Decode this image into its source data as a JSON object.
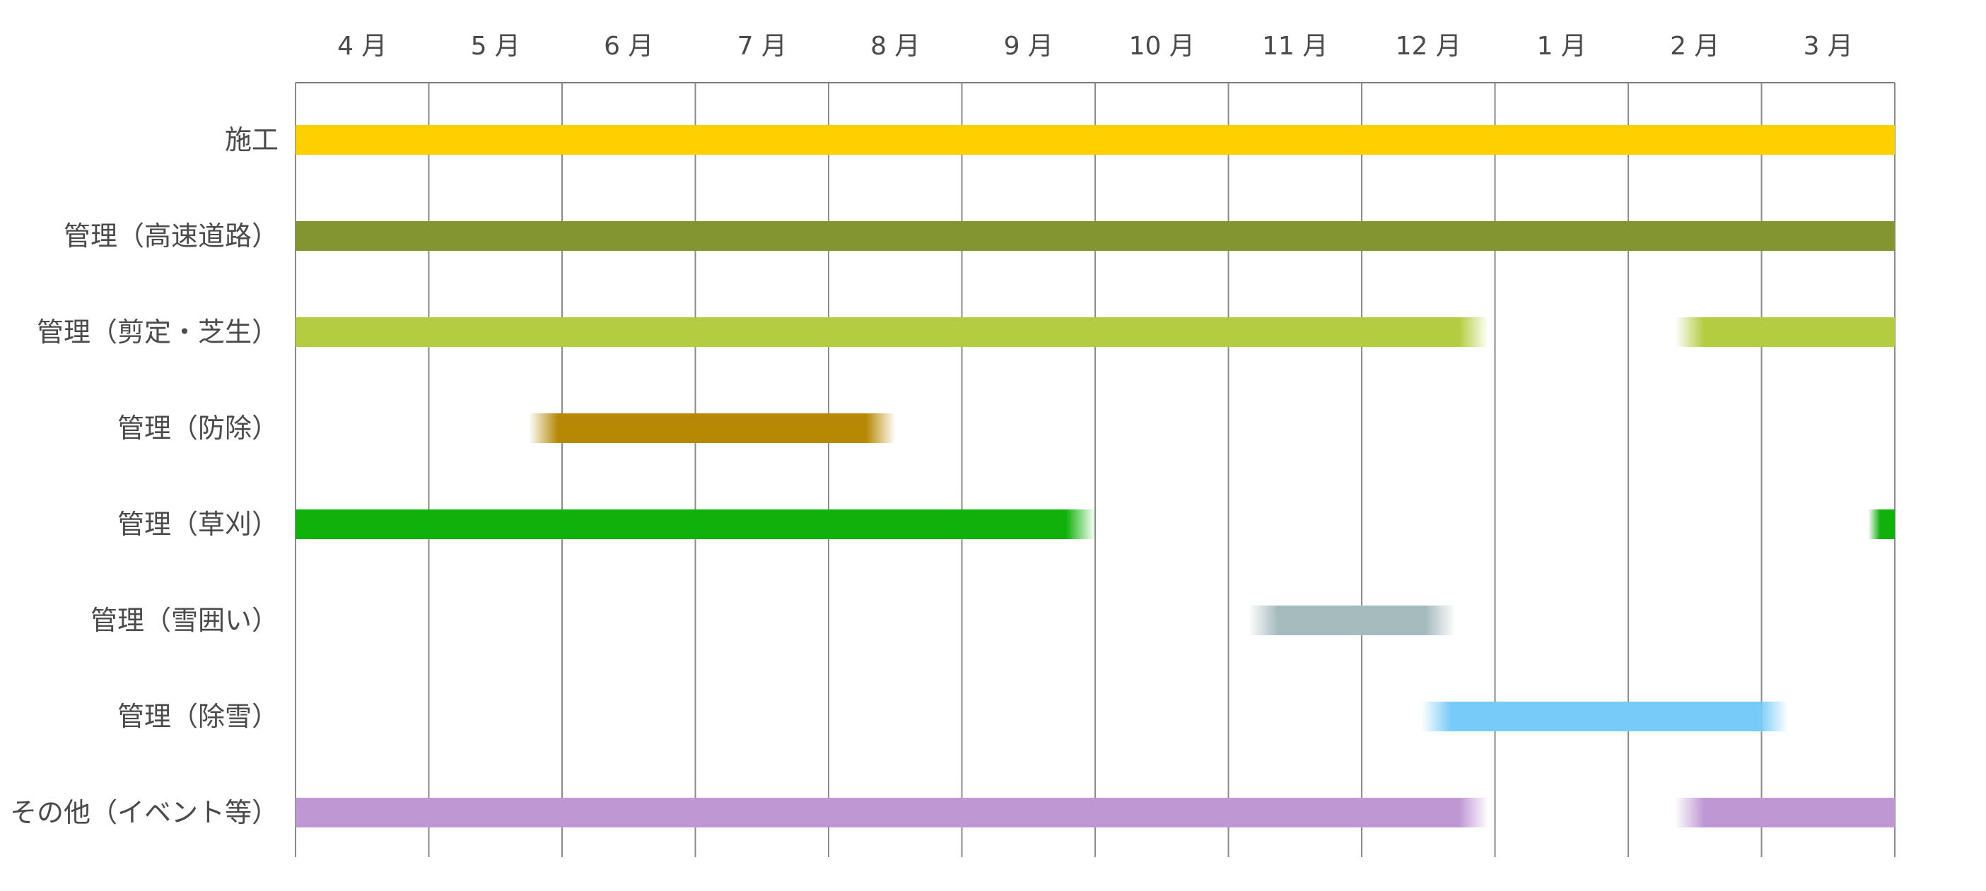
{
  "chart_data": {
    "type": "gantt",
    "title": "",
    "months": [
      "4 月",
      "5 月",
      "6 月",
      "7 月",
      "8 月",
      "9 月",
      "10 月",
      "11 月",
      "12 月",
      "1 月",
      "2 月",
      "3 月"
    ],
    "x_unit": "month index (0 = start of 4 月, 12 = end of 3 月)",
    "grid": "vertical lines at month boundaries",
    "series": [
      {
        "name": "施工",
        "color": "#FFD000",
        "segments": [
          {
            "start": 0.0,
            "end": 12.0,
            "fade_start": false,
            "fade_end": false
          }
        ]
      },
      {
        "name": "管理（高速道路）",
        "color": "#839531",
        "segments": [
          {
            "start": 0.0,
            "end": 12.0,
            "fade_start": false,
            "fade_end": false
          }
        ]
      },
      {
        "name": "管理（剪定・芝生）",
        "color": "#B3CC40",
        "segments": [
          {
            "start": 0.0,
            "end": 8.95,
            "fade_start": false,
            "fade_end": true
          },
          {
            "start": 10.35,
            "end": 12.0,
            "fade_start": true,
            "fade_end": false
          }
        ]
      },
      {
        "name": "管理（防除）",
        "color": "#B68803",
        "segments": [
          {
            "start": 1.75,
            "end": 4.5,
            "fade_start": true,
            "fade_end": true
          }
        ]
      },
      {
        "name": "管理（草刈）",
        "color": "#10B10A",
        "segments": [
          {
            "start": 0.0,
            "end": 6.0,
            "fade_start": false,
            "fade_end": true
          },
          {
            "start": 11.8,
            "end": 12.0,
            "fade_start": true,
            "fade_end": false
          }
        ]
      },
      {
        "name": "管理（雪囲い）",
        "color": "#A6BBBE",
        "segments": [
          {
            "start": 7.15,
            "end": 8.7,
            "fade_start": true,
            "fade_end": true
          }
        ]
      },
      {
        "name": "管理（除雪）",
        "color": "#76CBF8",
        "segments": [
          {
            "start": 8.45,
            "end": 11.2,
            "fade_start": true,
            "fade_end": true
          }
        ]
      },
      {
        "name": "その他（イベント等）",
        "color": "#BF97D3",
        "segments": [
          {
            "start": 0.0,
            "end": 8.95,
            "fade_start": false,
            "fade_end": true
          },
          {
            "start": 10.35,
            "end": 12.0,
            "fade_start": true,
            "fade_end": false
          }
        ]
      }
    ]
  }
}
